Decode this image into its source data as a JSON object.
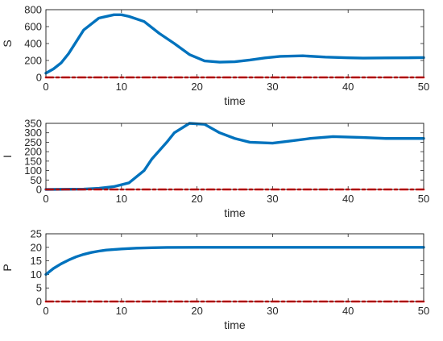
{
  "colors": {
    "series_blue": "#0072BD",
    "series_red": "#FF0000",
    "axis": "#262626"
  },
  "chart_data": [
    {
      "type": "line",
      "xlabel": "time",
      "ylabel": "S",
      "xlim": [
        0,
        50
      ],
      "ylim": [
        0,
        800
      ],
      "xticks": [
        0,
        10,
        20,
        30,
        40,
        50
      ],
      "yticks": [
        0,
        200,
        400,
        600,
        800
      ],
      "grid": false,
      "series": [
        {
          "color": "#0072BD",
          "style": "solid",
          "x": [
            0,
            1,
            2,
            3,
            5,
            7,
            9,
            10,
            11,
            13,
            15,
            17,
            19,
            21,
            23,
            25,
            27,
            29,
            31,
            34,
            37,
            40,
            42,
            45,
            48,
            50
          ],
          "y": [
            50,
            100,
            170,
            280,
            560,
            700,
            740,
            740,
            720,
            660,
            520,
            400,
            270,
            195,
            180,
            185,
            205,
            230,
            248,
            255,
            240,
            232,
            228,
            230,
            232,
            234
          ]
        },
        {
          "color": "#FF0000",
          "style": "dashdot",
          "x": [
            0,
            50
          ],
          "y": [
            0,
            0
          ]
        }
      ]
    },
    {
      "type": "line",
      "xlabel": "time",
      "ylabel": "I",
      "xlim": [
        0,
        50
      ],
      "ylim": [
        0,
        350
      ],
      "xticks": [
        0,
        10,
        20,
        30,
        40,
        50
      ],
      "yticks": [
        0,
        50,
        100,
        150,
        200,
        250,
        300,
        350
      ],
      "grid": false,
      "series": [
        {
          "color": "#0072BD",
          "style": "solid",
          "x": [
            0,
            5,
            7,
            9,
            11,
            13,
            14,
            16,
            17,
            19,
            21,
            23,
            25,
            27,
            30,
            32,
            35,
            38,
            42,
            45,
            50
          ],
          "y": [
            0,
            2,
            6,
            15,
            35,
            100,
            160,
            250,
            300,
            350,
            345,
            300,
            270,
            250,
            245,
            255,
            270,
            280,
            275,
            270,
            270
          ]
        },
        {
          "color": "#FF0000",
          "style": "dashdot",
          "x": [
            0,
            50
          ],
          "y": [
            0,
            0
          ]
        }
      ]
    },
    {
      "type": "line",
      "xlabel": "time",
      "ylabel": "P",
      "xlim": [
        0,
        50
      ],
      "ylim": [
        0,
        25
      ],
      "xticks": [
        0,
        10,
        20,
        30,
        40,
        50
      ],
      "yticks": [
        0,
        5,
        10,
        15,
        20,
        25
      ],
      "grid": false,
      "series": [
        {
          "color": "#0072BD",
          "style": "solid",
          "x": [
            0,
            1,
            2,
            3,
            4,
            5,
            6,
            7,
            8,
            10,
            12,
            14,
            16,
            20,
            30,
            40,
            50
          ],
          "y": [
            10,
            12.2,
            13.9,
            15.3,
            16.5,
            17.4,
            18.1,
            18.6,
            19.0,
            19.4,
            19.7,
            19.85,
            19.95,
            20,
            20,
            20,
            20
          ]
        },
        {
          "color": "#FF0000",
          "style": "dashdot",
          "x": [
            0,
            50
          ],
          "y": [
            0,
            0
          ]
        }
      ]
    }
  ]
}
